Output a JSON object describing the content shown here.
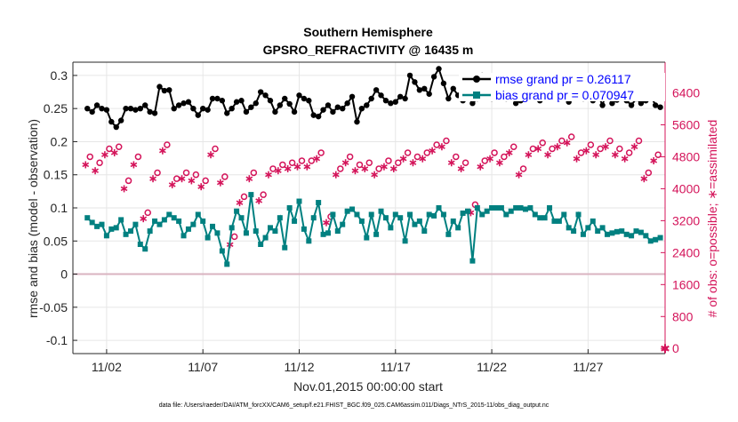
{
  "chart_data": {
    "type": "line",
    "title_line1": "Southern Hemisphere",
    "title_line2": "GPSRO_REFRACTIVITY @ 16435 m",
    "xlabel": "Nov.01,2015 00:00:00 start",
    "ylabel_left": "rmse and bias (model - observation)",
    "ylabel_right": "# of obs: o=possible; ∗=assimilated",
    "footnote": "data file: /Users/raeder/DAI/ATM_forcXX/CAM6_setup/f.e21.FHIST_BGC.f09_025.CAM6assim.011/Diags_NTrS_2015-11/obs_diag_output.nc",
    "ylim_left": [
      -0.12,
      0.32
    ],
    "ylim_right": [
      -128,
      7168
    ],
    "xlim": [
      0.25,
      31.0
    ],
    "x_ticks": [
      2,
      7,
      12,
      17,
      22,
      27
    ],
    "x_tick_labels": [
      "11/02",
      "11/07",
      "11/12",
      "11/17",
      "11/22",
      "11/27"
    ],
    "y_ticks_left": [
      -0.1,
      -0.05,
      0,
      0.05,
      0.1,
      0.15,
      0.2,
      0.25,
      0.3
    ],
    "y_tick_labels_left": [
      "-0.1",
      "-0.05",
      "0",
      "0.05",
      "0.1",
      "0.15",
      "0.2",
      "0.25",
      "0.3"
    ],
    "y_ticks_right": [
      0,
      800,
      1600,
      2400,
      3200,
      4000,
      4800,
      5600,
      6400
    ],
    "y_tick_labels_right": [
      "0",
      "800",
      "1600",
      "2400",
      "3200",
      "4000",
      "4800",
      "5600",
      "6400"
    ],
    "grid": true,
    "legend_position": "top-right",
    "colors": {
      "rmse": "#000000",
      "bias": "#008080",
      "obs": "#d4145a",
      "legend_text": "#0000ff",
      "zero_line": "#d9b3c0",
      "grid": "#e6e6e6"
    },
    "series": [
      {
        "name": "rmse grand pr = 0.26117",
        "axis": "left",
        "style": "line-dot",
        "x": [
          1.0,
          1.25,
          1.5,
          1.75,
          2.0,
          2.25,
          2.5,
          2.75,
          3.0,
          3.25,
          3.5,
          3.75,
          4.0,
          4.25,
          4.5,
          4.75,
          5.0,
          5.25,
          5.5,
          5.75,
          6.0,
          6.25,
          6.5,
          6.75,
          7.0,
          7.25,
          7.5,
          7.75,
          8.0,
          8.25,
          8.5,
          8.75,
          9.0,
          9.25,
          9.5,
          9.75,
          10.0,
          10.25,
          10.5,
          10.75,
          11.0,
          11.25,
          11.5,
          11.75,
          12.0,
          12.25,
          12.5,
          12.75,
          13.0,
          13.25,
          13.5,
          13.75,
          14.0,
          14.25,
          14.5,
          14.75,
          15.0,
          15.25,
          15.5,
          15.75,
          16.0,
          16.25,
          16.5,
          16.75,
          17.0,
          17.25,
          17.5,
          17.75,
          18.0,
          18.25,
          18.5,
          18.75,
          19.0,
          19.25,
          19.5,
          19.75,
          20.0,
          20.25,
          20.5,
          20.75,
          21.0,
          21.25,
          21.5,
          21.75,
          22.0,
          22.25,
          22.5,
          22.75,
          23.0,
          23.25,
          23.5,
          23.75,
          24.0,
          24.25,
          24.5,
          24.75,
          25.0,
          25.25,
          25.5,
          25.75,
          26.0,
          26.25,
          26.5,
          26.75,
          27.0,
          27.25,
          27.5,
          27.75,
          28.0,
          28.25,
          28.5,
          28.75,
          29.0,
          29.25,
          29.5,
          29.75,
          30.0,
          30.25,
          30.5,
          30.75
        ],
        "values": [
          0.25,
          0.245,
          0.255,
          0.25,
          0.248,
          0.23,
          0.222,
          0.232,
          0.25,
          0.25,
          0.248,
          0.25,
          0.255,
          0.245,
          0.243,
          0.283,
          0.277,
          0.278,
          0.25,
          0.255,
          0.258,
          0.26,
          0.25,
          0.24,
          0.25,
          0.248,
          0.265,
          0.265,
          0.262,
          0.243,
          0.25,
          0.26,
          0.262,
          0.245,
          0.252,
          0.258,
          0.275,
          0.27,
          0.262,
          0.245,
          0.255,
          0.265,
          0.257,
          0.245,
          0.27,
          0.265,
          0.262,
          0.24,
          0.238,
          0.248,
          0.255,
          0.245,
          0.252,
          0.25,
          0.258,
          0.268,
          0.23,
          0.25,
          0.255,
          0.265,
          0.278,
          0.27,
          0.262,
          0.258,
          0.26,
          0.268,
          0.265,
          0.3,
          0.29,
          0.278,
          0.28,
          0.272,
          0.298,
          0.31,
          0.288,
          0.265,
          0.28,
          0.27,
          0.262,
          0.27,
          0.258,
          0.265,
          0.3,
          0.268,
          0.265,
          0.278,
          0.27,
          0.265,
          0.278,
          0.258,
          0.262,
          0.272,
          0.288,
          0.275,
          0.262,
          0.27,
          0.275,
          0.268,
          0.265,
          0.28,
          0.26,
          0.275,
          0.27,
          0.265,
          0.283,
          0.262,
          0.272,
          0.255,
          0.28,
          0.258,
          0.263,
          0.272,
          0.262,
          0.255,
          0.265,
          0.258,
          0.262,
          0.27,
          0.255,
          0.252
        ]
      },
      {
        "name": "bias grand pr = 0.070947",
        "axis": "left",
        "style": "line-square",
        "x": [
          1.0,
          1.25,
          1.5,
          1.75,
          2.0,
          2.25,
          2.5,
          2.75,
          3.0,
          3.25,
          3.5,
          3.75,
          4.0,
          4.25,
          4.5,
          4.75,
          5.0,
          5.25,
          5.5,
          5.75,
          6.0,
          6.25,
          6.5,
          6.75,
          7.0,
          7.25,
          7.5,
          7.75,
          8.0,
          8.25,
          8.5,
          8.75,
          9.0,
          9.25,
          9.5,
          9.75,
          10.0,
          10.25,
          10.5,
          10.75,
          11.0,
          11.25,
          11.5,
          11.75,
          12.0,
          12.25,
          12.5,
          12.75,
          13.0,
          13.25,
          13.5,
          13.75,
          14.0,
          14.25,
          14.5,
          14.75,
          15.0,
          15.25,
          15.5,
          15.75,
          16.0,
          16.25,
          16.5,
          16.75,
          17.0,
          17.25,
          17.5,
          17.75,
          18.0,
          18.25,
          18.5,
          18.75,
          19.0,
          19.25,
          19.5,
          19.75,
          20.0,
          20.25,
          20.5,
          20.75,
          21.0,
          21.25,
          21.5,
          21.75,
          22.0,
          22.25,
          22.5,
          22.75,
          23.0,
          23.25,
          23.5,
          23.75,
          24.0,
          24.25,
          24.5,
          24.75,
          25.0,
          25.25,
          25.5,
          25.75,
          26.0,
          26.25,
          26.5,
          26.75,
          27.0,
          27.25,
          27.5,
          27.75,
          28.0,
          28.25,
          28.5,
          28.75,
          29.0,
          29.25,
          29.5,
          29.75,
          30.0,
          30.25,
          30.5,
          30.75
        ],
        "values": [
          0.085,
          0.078,
          0.072,
          0.075,
          0.058,
          0.068,
          0.07,
          0.082,
          0.06,
          0.065,
          0.075,
          0.045,
          0.038,
          0.065,
          0.08,
          0.075,
          0.082,
          0.09,
          0.085,
          0.08,
          0.058,
          0.068,
          0.075,
          0.09,
          0.08,
          0.055,
          0.072,
          0.062,
          0.035,
          0.015,
          0.07,
          0.095,
          0.085,
          0.062,
          0.12,
          0.065,
          0.045,
          0.055,
          0.07,
          0.065,
          0.085,
          0.04,
          0.1,
          0.08,
          0.11,
          0.068,
          0.05,
          0.085,
          0.108,
          0.06,
          0.062,
          0.09,
          0.065,
          0.075,
          0.095,
          0.098,
          0.09,
          0.08,
          0.055,
          0.09,
          0.06,
          0.095,
          0.085,
          0.07,
          0.09,
          0.085,
          0.05,
          0.09,
          0.075,
          0.08,
          0.065,
          0.09,
          0.088,
          0.1,
          0.09,
          0.06,
          0.08,
          0.07,
          0.092,
          0.095,
          0.02,
          0.1,
          0.09,
          0.095,
          0.1,
          0.1,
          0.1,
          0.09,
          0.095,
          0.1,
          0.1,
          0.098,
          0.1,
          0.09,
          0.085,
          0.085,
          0.1,
          0.08,
          0.08,
          0.09,
          0.07,
          0.065,
          0.09,
          0.06,
          0.07,
          0.08,
          0.065,
          0.07,
          0.06,
          0.062,
          0.064,
          0.065,
          0.06,
          0.058,
          0.065,
          0.063,
          0.058,
          0.05,
          0.052,
          0.055
        ]
      },
      {
        "name": "obs possible",
        "axis": "right",
        "style": "marker-circle",
        "x": [
          1.0,
          1.5,
          2.0,
          2.5,
          3.0,
          3.5,
          4.0,
          4.5,
          5.0,
          5.5,
          6.0,
          6.5,
          7.0,
          7.5,
          8.0,
          8.5,
          9.0,
          9.5,
          10.0,
          10.5,
          11.0,
          11.5,
          12.0,
          12.5,
          13.0,
          13.5,
          14.0,
          14.5,
          15.0,
          15.5,
          16.0,
          16.5,
          17.0,
          17.5,
          18.0,
          18.5,
          19.0,
          19.5,
          20.0,
          20.5,
          21.0,
          21.5,
          22.0,
          22.5,
          23.0,
          23.5,
          24.0,
          24.5,
          25.0,
          25.5,
          26.0,
          26.5,
          27.0,
          27.5,
          28.0,
          28.5,
          29.0,
          29.5,
          30.0,
          30.5
        ],
        "values": [
          4800,
          4650,
          5000,
          5050,
          4200,
          4800,
          3400,
          4400,
          5100,
          4250,
          4400,
          4350,
          4200,
          5000,
          4300,
          2800,
          3800,
          4400,
          3850,
          4500,
          4600,
          4650,
          4700,
          4700,
          4900,
          3300,
          4500,
          4800,
          4600,
          4650,
          4500,
          4700,
          4650,
          4900,
          4800,
          4900,
          5100,
          5200,
          4800,
          4650,
          3600,
          4700,
          4900,
          4800,
          5050,
          4500,
          5000,
          5150,
          5000,
          5200,
          5300,
          4900,
          5100,
          5000,
          5200,
          5000,
          4900,
          5200,
          4400,
          4850
        ]
      },
      {
        "name": "obs assimilated",
        "axis": "right",
        "style": "marker-star",
        "x": [
          1.0,
          1.5,
          2.0,
          2.5,
          3.0,
          3.5,
          4.0,
          4.5,
          5.0,
          5.5,
          6.0,
          6.5,
          7.0,
          7.5,
          8.0,
          8.5,
          9.0,
          9.5,
          10.0,
          10.5,
          11.0,
          11.5,
          12.0,
          12.5,
          13.0,
          13.5,
          14.0,
          14.5,
          15.0,
          15.5,
          16.0,
          16.5,
          17.0,
          17.5,
          18.0,
          18.5,
          19.0,
          19.5,
          20.0,
          20.5,
          21.0,
          21.5,
          22.0,
          22.5,
          23.0,
          23.5,
          24.0,
          24.5,
          25.0,
          25.5,
          26.0,
          26.5,
          27.0,
          27.5,
          28.0,
          28.5,
          29.0,
          29.5,
          30.0,
          30.5
        ],
        "values": [
          4600,
          4450,
          4850,
          4900,
          4000,
          4600,
          3250,
          4250,
          4950,
          4100,
          4250,
          4200,
          4050,
          4850,
          4150,
          2600,
          3650,
          4250,
          3700,
          4350,
          4450,
          4500,
          4550,
          4550,
          4750,
          3150,
          4350,
          4650,
          4450,
          4500,
          4350,
          4550,
          4500,
          4750,
          4650,
          4750,
          4950,
          5050,
          4650,
          4500,
          3400,
          4550,
          4750,
          4650,
          4900,
          4350,
          4850,
          5000,
          4850,
          5050,
          5150,
          4750,
          4950,
          4850,
          5050,
          4850,
          4750,
          5050,
          4250,
          4700
        ]
      }
    ],
    "zero_count_point": {
      "x": 31.0,
      "value": 0
    }
  }
}
